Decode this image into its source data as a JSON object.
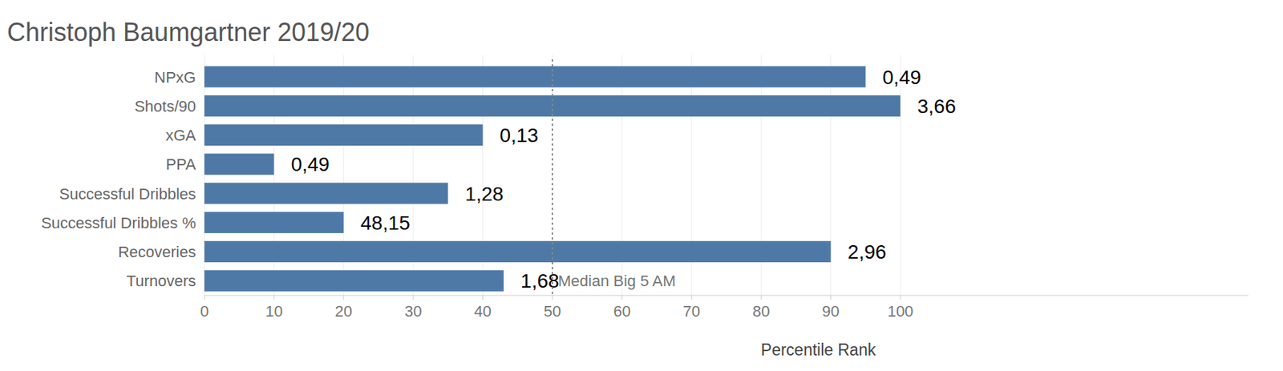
{
  "chart_data": {
    "type": "bar",
    "orientation": "horizontal",
    "title": "Christoph Baumgartner 2019/20",
    "categories": [
      "NPxG",
      "Shots/90",
      "xGA",
      "PPA",
      "Successful Dribbles",
      "Successful Dribbles %",
      "Recoveries",
      "Turnovers"
    ],
    "values": [
      95,
      100,
      40,
      10,
      35,
      20,
      90,
      43
    ],
    "stat_labels": [
      "0,49",
      "3,66",
      "0,13",
      "0,49",
      "1,28",
      "48,15",
      "2,96",
      "1,68"
    ],
    "color": "#4e79a7",
    "xlabel": "Percentile Rank",
    "xlim": [
      0,
      150
    ],
    "xticks": [
      0,
      10,
      20,
      30,
      40,
      50,
      60,
      70,
      80,
      90,
      100
    ],
    "grid": true,
    "reference_line": {
      "value": 50,
      "label": "Median Big 5 AM"
    }
  }
}
